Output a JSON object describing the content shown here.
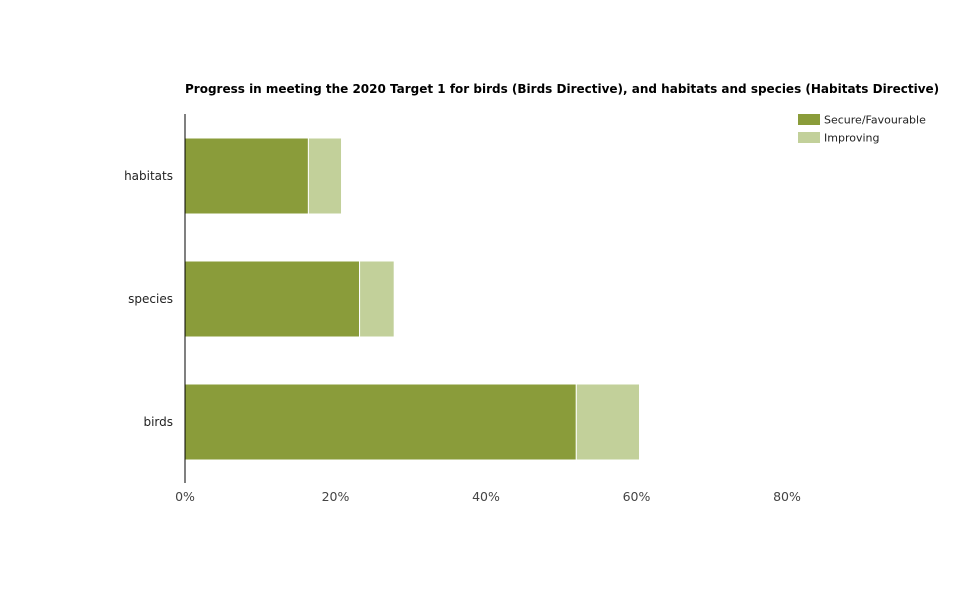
{
  "chart_data": {
    "type": "bar",
    "orientation": "horizontal",
    "stacked": true,
    "title": "Progress in meeting the 2020 Target 1 for birds (Birds Directive), and habitats and species (Habitats Directive)",
    "categories": [
      "habitats",
      "species",
      "birds"
    ],
    "series": [
      {
        "name": "Secure/Favourable",
        "values": [
          16.4,
          23.2,
          52.0
        ],
        "color": "#8a9c3a"
      },
      {
        "name": "Improving",
        "values": [
          4.4,
          4.6,
          8.4
        ],
        "color": "#c2d09a"
      }
    ],
    "xlim": [
      0,
      80
    ],
    "xticks": [
      0,
      20,
      40,
      60,
      80
    ],
    "tick_suffix": "%",
    "xlabel": "",
    "ylabel": "",
    "grid": false,
    "legend_position": "top-right"
  }
}
